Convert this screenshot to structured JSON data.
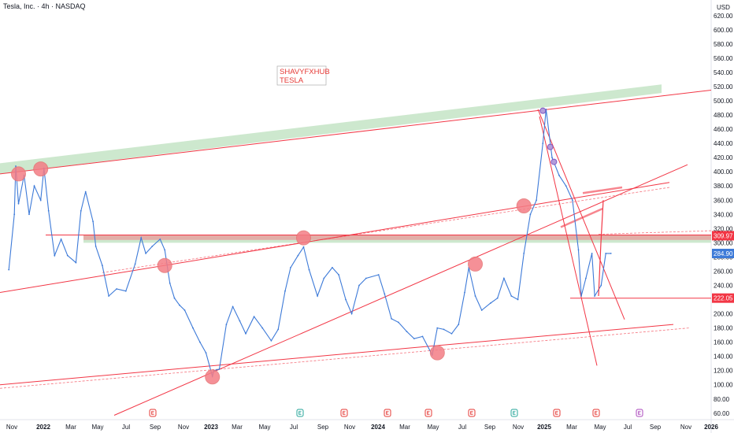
{
  "symbol": {
    "title": "Tesla, Inc. · 4h · NASDAQ"
  },
  "watermark": {
    "line1": "SHAVYFXHUB",
    "line2": "TESLA",
    "color": "#e53935"
  },
  "colors": {
    "price_line": "#3d7ad8",
    "trend_line": "#f23645",
    "support_zone": "#c8e6c9",
    "pivot_marker": "#f47d86",
    "purple_marker": "#b39ddb",
    "earnings_marker": "#26a69a",
    "dividend_marker": "#e53935",
    "split_marker": "#ab47bc"
  },
  "chart_data": {
    "type": "line",
    "currency": "USD",
    "price_axis": {
      "ticks": [
        60,
        80,
        100,
        120,
        140,
        160,
        180,
        200,
        220,
        240,
        260,
        280,
        300,
        320,
        340,
        360,
        380,
        400,
        420,
        440,
        460,
        480,
        500,
        520,
        540,
        560,
        580,
        600,
        620
      ],
      "ylim": [
        52,
        642
      ]
    },
    "time_axis": {
      "labels": [
        "Nov",
        "2022",
        "Mar",
        "May",
        "Jul",
        "Sep",
        "Nov",
        "2023",
        "Mar",
        "May",
        "Jul",
        "Sep",
        "Nov",
        "2024",
        "Mar",
        "May",
        "Jul",
        "Sep",
        "Nov",
        "2025",
        "Mar",
        "May",
        "Jul",
        "Sep",
        "Nov",
        "2026"
      ],
      "bold": [
        "2022",
        "2023",
        "2024",
        "2025",
        "2026"
      ]
    },
    "price_labels": [
      {
        "value": 309.97,
        "text": "309.97",
        "color": "#f23645"
      },
      {
        "value": 284.9,
        "text": "284.90",
        "color": "#3d7ad8"
      },
      {
        "value": 222.05,
        "text": "222.05",
        "color": "#f23645"
      }
    ],
    "series": [
      {
        "x": [
          "2021-10-20",
          "2021-11-01",
          "2021-11-04",
          "2021-11-10",
          "2021-11-22",
          "2021-12-03",
          "2021-12-14",
          "2021-12-28",
          "2022-01-04",
          "2022-01-14",
          "2022-01-27",
          "2022-02-10",
          "2022-02-24",
          "2022-03-14",
          "2022-03-25",
          "2022-04-04",
          "2022-04-20",
          "2022-04-26",
          "2022-05-10",
          "2022-05-24",
          "2022-06-10",
          "2022-06-30",
          "2022-07-20",
          "2022-08-02",
          "2022-08-12",
          "2022-08-26",
          "2022-09-12",
          "2022-09-22",
          "2022-10-03",
          "2022-10-13",
          "2022-10-24",
          "2022-11-04",
          "2022-11-22",
          "2022-12-07",
          "2022-12-20",
          "2023-01-03",
          "2023-01-06",
          "2023-01-18",
          "2023-02-02",
          "2023-02-16",
          "2023-03-03",
          "2023-03-16",
          "2023-04-03",
          "2023-04-21",
          "2023-05-10",
          "2023-05-25",
          "2023-06-09",
          "2023-06-21",
          "2023-07-07",
          "2023-07-19",
          "2023-07-31",
          "2023-08-18",
          "2023-09-01",
          "2023-09-19",
          "2023-10-03",
          "2023-10-18",
          "2023-10-31",
          "2023-11-16",
          "2023-12-01",
          "2023-12-28",
          "2024-01-10",
          "2024-01-25",
          "2024-02-09",
          "2024-02-27",
          "2024-03-14",
          "2024-04-01",
          "2024-04-22",
          "2024-05-03",
          "2024-05-17",
          "2024-06-03",
          "2024-06-18",
          "2024-07-01",
          "2024-07-10",
          "2024-07-24",
          "2024-08-07",
          "2024-08-26",
          "2024-09-10",
          "2024-09-24",
          "2024-10-10",
          "2024-10-24",
          "2024-11-06",
          "2024-11-20",
          "2024-12-03",
          "2024-12-17",
          "2024-12-24",
          "2025-01-06",
          "2025-01-21",
          "2025-02-05",
          "2025-02-19",
          "2025-03-04",
          "2025-03-10",
          "2025-03-20",
          "2025-04-02",
          "2025-04-08",
          "2025-04-22",
          "2025-05-02",
          "2025-05-13"
        ],
        "values": [
          262,
          340,
          408,
          355,
          395,
          340,
          380,
          360,
          405,
          345,
          282,
          305,
          282,
          272,
          345,
          372,
          330,
          295,
          268,
          225,
          235,
          232,
          270,
          307,
          285,
          295,
          305,
          290,
          243,
          222,
          212,
          205,
          180,
          160,
          145,
          112,
          120,
          122,
          185,
          210,
          190,
          172,
          196,
          180,
          162,
          178,
          232,
          265,
          282,
          294,
          262,
          225,
          250,
          265,
          255,
          220,
          200,
          240,
          250,
          255,
          228,
          193,
          188,
          175,
          165,
          168,
          142,
          180,
          178,
          172,
          185,
          230,
          265,
          225,
          205,
          215,
          222,
          250,
          225,
          220,
          285,
          340,
          360,
          440,
          488,
          420,
          395,
          380,
          360,
          290,
          225,
          250,
          285,
          225,
          240,
          285,
          285
        ]
      }
    ]
  }
}
